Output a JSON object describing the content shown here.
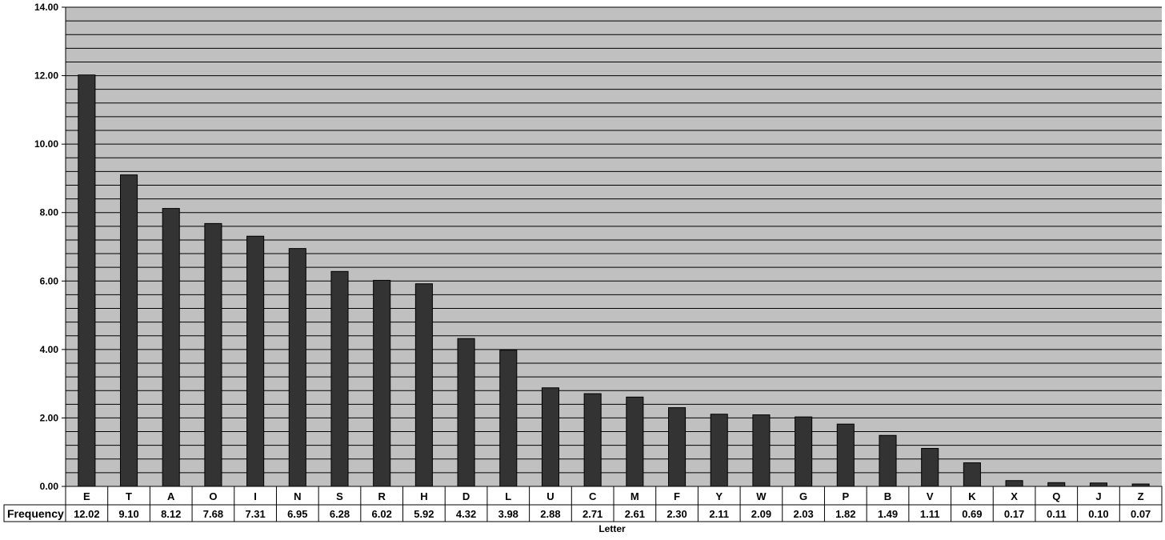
{
  "chart_data": {
    "type": "bar",
    "title": "",
    "xlabel": "Letter",
    "ylabel": "",
    "ylim": [
      0,
      14
    ],
    "y_major_step": 2,
    "y_minor_step": 0.4,
    "grid": true,
    "legend": "none",
    "y_tick_labels": [
      "0.00",
      "2.00",
      "4.00",
      "6.00",
      "8.00",
      "10.00",
      "12.00",
      "14.00"
    ],
    "categories": [
      "E",
      "T",
      "A",
      "O",
      "I",
      "N",
      "S",
      "R",
      "H",
      "D",
      "L",
      "U",
      "C",
      "M",
      "F",
      "Y",
      "W",
      "G",
      "P",
      "B",
      "V",
      "K",
      "X",
      "Q",
      "J",
      "Z"
    ],
    "series": [
      {
        "name": "Frequency",
        "values": [
          12.02,
          9.1,
          8.12,
          7.68,
          7.31,
          6.95,
          6.28,
          6.02,
          5.92,
          4.32,
          3.98,
          2.88,
          2.71,
          2.61,
          2.3,
          2.11,
          2.09,
          2.03,
          1.82,
          1.49,
          1.11,
          0.69,
          0.17,
          0.11,
          0.1,
          0.07
        ],
        "labels": [
          "12.02",
          "9.10",
          "8.12",
          "7.68",
          "7.31",
          "6.95",
          "6.28",
          "6.02",
          "5.92",
          "4.32",
          "3.98",
          "2.88",
          "2.71",
          "2.61",
          "2.30",
          "2.11",
          "2.09",
          "2.03",
          "1.82",
          "1.49",
          "1.11",
          "0.69",
          "0.17",
          "0.11",
          "0.10",
          "0.07"
        ]
      }
    ],
    "data_table": true,
    "colors": {
      "plot_bg": "#c0c0c0",
      "bar": "#333333",
      "grid": "#000000"
    }
  }
}
